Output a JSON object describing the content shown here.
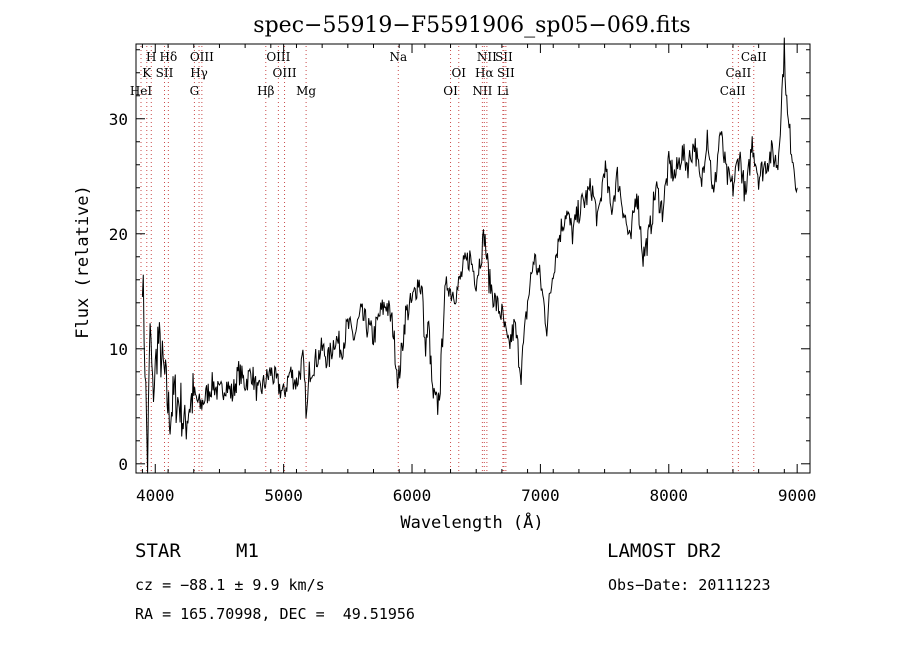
{
  "chart_data": {
    "type": "line",
    "title": "spec−55919−F5591906_sp05−069.fits",
    "xlabel": "Wavelength (Å)",
    "ylabel": "Flux (relative)",
    "xlim": [
      3850,
      9100
    ],
    "ylim": [
      -0.8,
      36.5
    ],
    "xticks": [
      4000,
      5000,
      6000,
      7000,
      8000,
      9000
    ],
    "yticks": [
      0,
      10,
      20,
      30
    ],
    "grid": false,
    "series": [
      {
        "x": [
          3900,
          3920,
          3940,
          3960,
          3980,
          4000,
          4020,
          4050,
          4080,
          4110,
          4150,
          4200,
          4230,
          4260,
          4300,
          4350,
          4400,
          4450,
          4500,
          4550,
          4600,
          4650,
          4700,
          4750,
          4800,
          4850,
          4900,
          4950,
          5000,
          5050,
          5100,
          5150,
          5180,
          5200,
          5250,
          5300,
          5350,
          5400,
          5450,
          5500,
          5550,
          5600,
          5650,
          5700,
          5750,
          5800,
          5850,
          5893,
          5950,
          6000,
          6050,
          6080,
          6100,
          6130,
          6160,
          6200,
          6220,
          6250,
          6280,
          6300,
          6350,
          6400,
          6450,
          6500,
          6550,
          6563,
          6600,
          6650,
          6700,
          6750,
          6800,
          6850,
          6900,
          6950,
          7000,
          7050,
          7100,
          7150,
          7200,
          7250,
          7300,
          7350,
          7400,
          7450,
          7500,
          7550,
          7600,
          7650,
          7700,
          7750,
          7800,
          7850,
          7900,
          7950,
          8000,
          8050,
          8100,
          8150,
          8200,
          8250,
          8300,
          8350,
          8400,
          8450,
          8500,
          8550,
          8600,
          8650,
          8700,
          8750,
          8800,
          8850,
          8900,
          8925,
          8950,
          8975,
          9000
        ],
        "y": [
          17,
          9,
          0,
          12,
          6,
          8,
          11,
          9,
          7,
          4,
          6,
          5,
          3,
          5,
          6,
          5,
          6,
          7,
          6,
          7,
          6,
          8,
          7,
          8,
          6,
          7,
          8,
          7,
          6,
          8,
          7,
          9,
          4,
          8,
          9,
          10,
          9,
          11,
          10,
          12,
          11,
          13,
          12,
          11,
          13,
          14,
          12,
          7,
          13,
          14,
          16,
          15,
          10,
          12,
          6,
          5,
          7,
          14,
          16,
          15,
          15,
          17,
          18,
          16,
          19,
          20,
          16,
          14,
          13,
          10,
          12,
          8,
          14,
          18,
          16,
          12,
          17,
          20,
          22,
          20,
          22,
          23,
          24,
          21,
          26,
          22,
          25,
          22,
          19,
          24,
          18,
          20,
          24,
          22,
          26,
          25,
          27,
          26,
          28,
          24,
          29,
          23,
          29,
          25,
          24,
          27,
          23,
          28,
          25,
          26,
          27,
          26,
          36,
          30,
          28,
          26,
          24
        ]
      }
    ],
    "lines": [
      {
        "label": "H",
        "x": 3969
      },
      {
        "label": "K",
        "x": 3934
      },
      {
        "label": "HeI",
        "x": 3889
      },
      {
        "label": "Hδ",
        "x": 4102
      },
      {
        "label": "SII",
        "x": 4072
      },
      {
        "label": "G",
        "x": 4305
      },
      {
        "label": "OIII",
        "x": 4363
      },
      {
        "label": "Hγ",
        "x": 4341
      },
      {
        "label": "Hβ",
        "x": 4861
      },
      {
        "label": "OIII",
        "x": 4959
      },
      {
        "label": "OIII",
        "x": 5007
      },
      {
        "label": "Mg",
        "x": 5175
      },
      {
        "label": "Na",
        "x": 5893
      },
      {
        "label": "OI",
        "x": 6364
      },
      {
        "label": "OI",
        "x": 6300
      },
      {
        "label": "NII",
        "x": 6583
      },
      {
        "label": "Hα",
        "x": 6563
      },
      {
        "label": "NII",
        "x": 6548
      },
      {
        "label": "SII",
        "x": 6716
      },
      {
        "label": "SII",
        "x": 6731
      },
      {
        "label": "Li",
        "x": 6708
      },
      {
        "label": "CaII",
        "x": 8662
      },
      {
        "label": "CaII",
        "x": 8542
      },
      {
        "label": "CaII",
        "x": 8498
      }
    ]
  },
  "info": {
    "class_label": "STAR",
    "subclass": "M1",
    "survey": "LAMOST DR2",
    "cz": "cz = −88.1 ± 9.9 km/s",
    "obs_date": "Obs−Date: 20111223",
    "coords": "RA = 165.70998, DEC =  49.51956"
  }
}
